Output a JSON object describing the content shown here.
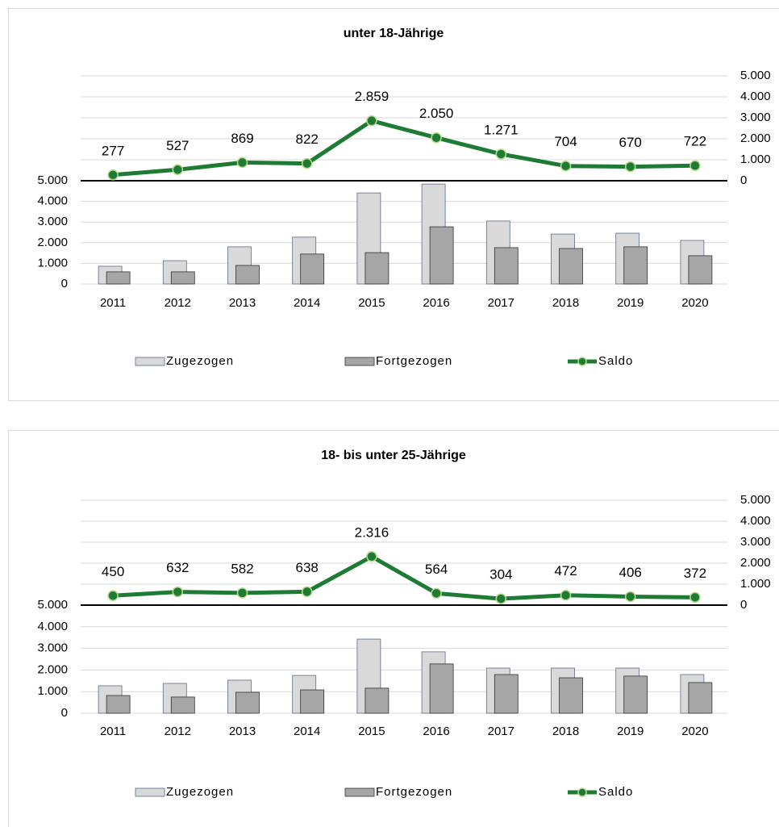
{
  "chart_data": [
    {
      "type": "bar_line",
      "title": "unter 18-Jährige",
      "categories": [
        "2011",
        "2012",
        "2013",
        "2014",
        "2015",
        "2016",
        "2017",
        "2018",
        "2019",
        "2020"
      ],
      "series": [
        {
          "name": "Zugezogen",
          "type": "bar",
          "color": "#d9d9d9",
          "values": [
            860,
            1130,
            1800,
            2270,
            4410,
            4840,
            3050,
            2420,
            2460,
            2110
          ]
        },
        {
          "name": "Fortgezogen",
          "type": "bar",
          "color": "#a6a6a6",
          "values": [
            590,
            590,
            900,
            1450,
            1520,
            2770,
            1760,
            1720,
            1800,
            1370
          ]
        },
        {
          "name": "Saldo",
          "type": "line",
          "axis": "y2",
          "color": "#1e7b34",
          "values": [
            277,
            527,
            869,
            822,
            2859,
            2050,
            1271,
            704,
            670,
            722
          ],
          "value_labels": [
            "277",
            "527",
            "869",
            "822",
            "2.859",
            "2.050",
            "1.271",
            "704",
            "670",
            "722"
          ]
        }
      ],
      "ylim": [
        0,
        5000
      ],
      "yticks": [
        0,
        {
          "value": 1000,
          "label": "1.000"
        },
        {
          "value": 2000,
          "label": "2.000"
        },
        {
          "value": 3000,
          "label": "3.000"
        },
        {
          "value": 4000,
          "label": "4.000"
        },
        {
          "value": 5000,
          "label": "5.000"
        }
      ],
      "y2lim": [
        0,
        5000
      ],
      "y2ticks": [
        0,
        {
          "value": 1000,
          "label": "1.000"
        },
        {
          "value": 2000,
          "label": "2.000"
        },
        {
          "value": 3000,
          "label": "3.000"
        },
        {
          "value": 4000,
          "label": "4.000"
        },
        {
          "value": 5000,
          "label": "5.000"
        }
      ],
      "grid": true,
      "legend": "bottom"
    },
    {
      "type": "bar_line",
      "title": "18- bis unter 25-Jährige",
      "categories": [
        "2011",
        "2012",
        "2013",
        "2014",
        "2015",
        "2016",
        "2017",
        "2018",
        "2019",
        "2020"
      ],
      "series": [
        {
          "name": "Zugezogen",
          "type": "bar",
          "color": "#d9d9d9",
          "values": [
            1270,
            1380,
            1530,
            1750,
            3430,
            2840,
            2090,
            2090,
            2090,
            1790
          ]
        },
        {
          "name": "Fortgezogen",
          "type": "bar",
          "color": "#a6a6a6",
          "values": [
            820,
            750,
            970,
            1080,
            1160,
            2280,
            1790,
            1640,
            1720,
            1420
          ]
        },
        {
          "name": "Saldo",
          "type": "line",
          "axis": "y2",
          "color": "#1e7b34",
          "values": [
            450,
            632,
            582,
            638,
            2316,
            564,
            304,
            472,
            406,
            372
          ],
          "value_labels": [
            "450",
            "632",
            "582",
            "638",
            "2.316",
            "564",
            "304",
            "472",
            "406",
            "372"
          ]
        }
      ],
      "ylim": [
        0,
        5000
      ],
      "yticks": [
        0,
        {
          "value": 1000,
          "label": "1.000"
        },
        {
          "value": 2000,
          "label": "2.000"
        },
        {
          "value": 3000,
          "label": "3.000"
        },
        {
          "value": 4000,
          "label": "4.000"
        },
        {
          "value": 5000,
          "label": "5.000"
        }
      ],
      "y2lim": [
        0,
        5000
      ],
      "y2ticks": [
        0,
        {
          "value": 1000,
          "label": "1.000"
        },
        {
          "value": 2000,
          "label": "2.000"
        },
        {
          "value": 3000,
          "label": "3.000"
        },
        {
          "value": 4000,
          "label": "4.000"
        },
        {
          "value": 5000,
          "label": "5.000"
        }
      ],
      "grid": true,
      "legend": "bottom"
    }
  ]
}
